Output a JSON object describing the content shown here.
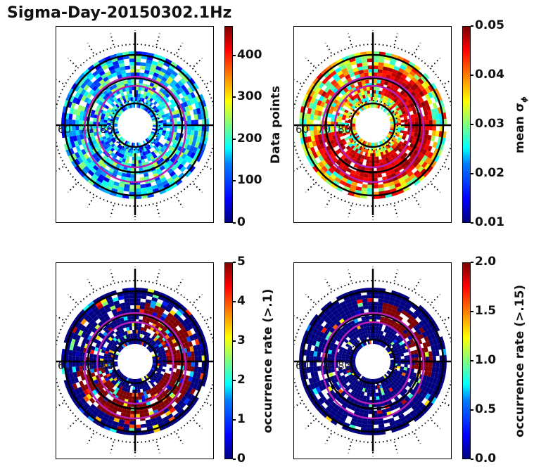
{
  "title": "Sigma-Day-20150302.1Hz",
  "colors": {
    "jet_low": "#00007f",
    "jet_high": "#7f0000",
    "grid_line": "#000000",
    "oval": "#b61fb6",
    "background": "#ffffff"
  },
  "chart_data": [
    {
      "type": "heatmap",
      "projection": "polar",
      "title": "",
      "lat_labels": [
        "60",
        "70",
        "80"
      ],
      "colorbar": {
        "label": "Data points",
        "range": [
          0,
          470
        ],
        "ticks": [
          "0",
          "100",
          "200",
          "300",
          "400"
        ],
        "tick_values": [
          0,
          100,
          200,
          300,
          400
        ],
        "colormap": "jet"
      },
      "dominant_level": "low-mid"
    },
    {
      "type": "heatmap",
      "projection": "polar",
      "title": "",
      "lat_labels": [
        "60",
        "70",
        "80"
      ],
      "colorbar": {
        "label": "mean σ",
        "label_subscript": "ϕ",
        "range": [
          0.01,
          0.05
        ],
        "ticks": [
          "0.01",
          "0.02",
          "0.03",
          "0.04",
          "0.05"
        ],
        "tick_values": [
          0.01,
          0.02,
          0.03,
          0.04,
          0.05
        ],
        "colormap": "jet"
      },
      "dominant_level": "high"
    },
    {
      "type": "heatmap",
      "projection": "polar",
      "title": "",
      "lat_labels": [
        "60",
        "70",
        "80"
      ],
      "colorbar": {
        "label": "occurrence rate (>.1)",
        "range": [
          0,
          5
        ],
        "ticks": [
          "0",
          "1",
          "2",
          "3",
          "4",
          "5"
        ],
        "tick_values": [
          0,
          1,
          2,
          3,
          4,
          5
        ],
        "colormap": "jet"
      },
      "dominant_level": "mixed"
    },
    {
      "type": "heatmap",
      "projection": "polar",
      "title": "",
      "lat_labels": [
        "60",
        "70",
        "80"
      ],
      "colorbar": {
        "label": "occurrence rate (>.15)",
        "range": [
          0,
          2
        ],
        "ticks": [
          "0.0",
          "0.5",
          "1.0",
          "1.5",
          "2.0"
        ],
        "tick_values": [
          0,
          0.5,
          1.0,
          1.5,
          2.0
        ],
        "colormap": "jet"
      },
      "dominant_level": "low"
    }
  ]
}
